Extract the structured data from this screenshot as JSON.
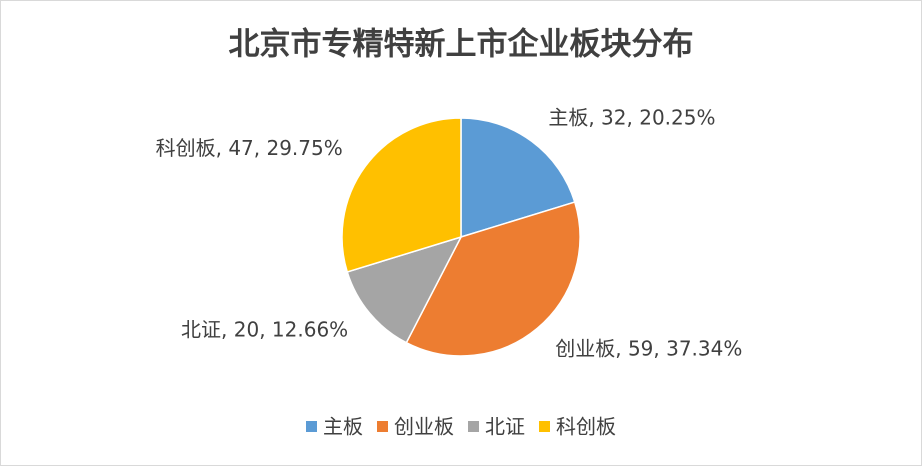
{
  "chart_data": {
    "type": "pie",
    "title": "北京市专精特新上市企业板块分布",
    "categories": [
      "主板",
      "创业板",
      "北证",
      "科创板"
    ],
    "values": [
      32,
      59,
      20,
      47
    ],
    "value_labels": [
      "主板, 32, 20.25%",
      "创业板, 59, 37.34%",
      "北证, 20, 12.66%",
      "科创板, 47, 29.75%"
    ],
    "colors": [
      "#5b9bd5",
      "#ed7d31",
      "#a5a5a5",
      "#ffc000"
    ],
    "legend": "bottom"
  }
}
